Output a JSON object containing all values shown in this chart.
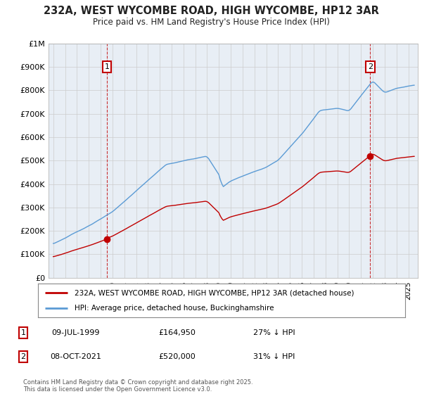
{
  "title": "232A, WEST WYCOMBE ROAD, HIGH WYCOMBE, HP12 3AR",
  "subtitle": "Price paid vs. HM Land Registry's House Price Index (HPI)",
  "ylim": [
    0,
    1000000
  ],
  "yticks": [
    0,
    100000,
    200000,
    300000,
    400000,
    500000,
    600000,
    700000,
    800000,
    900000,
    1000000
  ],
  "ytick_labels": [
    "£0",
    "£100K",
    "£200K",
    "£300K",
    "£400K",
    "£500K",
    "£600K",
    "£700K",
    "£800K",
    "£900K",
    "£1M"
  ],
  "hpi_color": "#5b9bd5",
  "price_color": "#c00000",
  "chart_bg": "#e8eef5",
  "annotation1_year": 1999.53,
  "annotation1_price": 164950,
  "annotation1_date": "09-JUL-1999",
  "annotation1_hpi_pct": "27% ↓ HPI",
  "annotation2_year": 2021.77,
  "annotation2_price": 520000,
  "annotation2_date": "08-OCT-2021",
  "annotation2_hpi_pct": "31% ↓ HPI",
  "legend_label1": "232A, WEST WYCOMBE ROAD, HIGH WYCOMBE, HP12 3AR (detached house)",
  "legend_label2": "HPI: Average price, detached house, Buckinghamshire",
  "footer1": "Contains HM Land Registry data © Crown copyright and database right 2025.",
  "footer2": "This data is licensed under the Open Government Licence v3.0.",
  "background_color": "#ffffff",
  "grid_color": "#cccccc",
  "title_color": "#222222"
}
